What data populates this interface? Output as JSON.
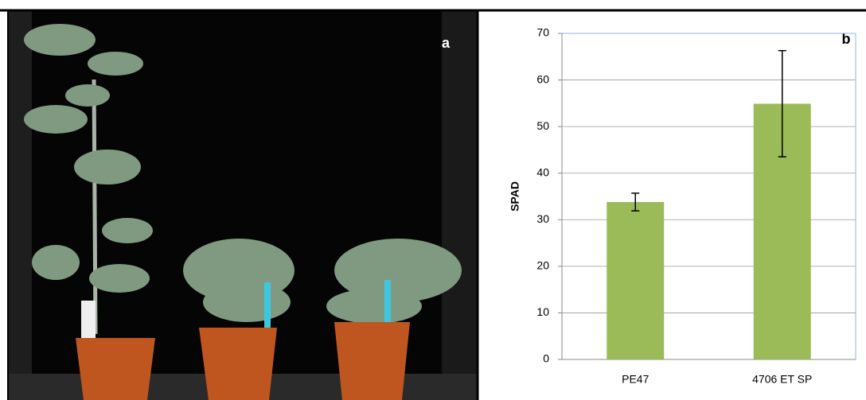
{
  "photo": {
    "panel_label": "a"
  },
  "chart_data": {
    "type": "bar",
    "panel_label": "b",
    "y_label": "SPAD",
    "categories": [
      "PE47",
      "4706 ET SP"
    ],
    "values": [
      33.8,
      54.9
    ],
    "errors": [
      1.9,
      11.4
    ],
    "color": "#9bbb59",
    "ylim": [
      0,
      70
    ],
    "yticks": [
      0,
      10,
      20,
      30,
      40,
      50,
      60,
      70
    ],
    "grid": true
  }
}
